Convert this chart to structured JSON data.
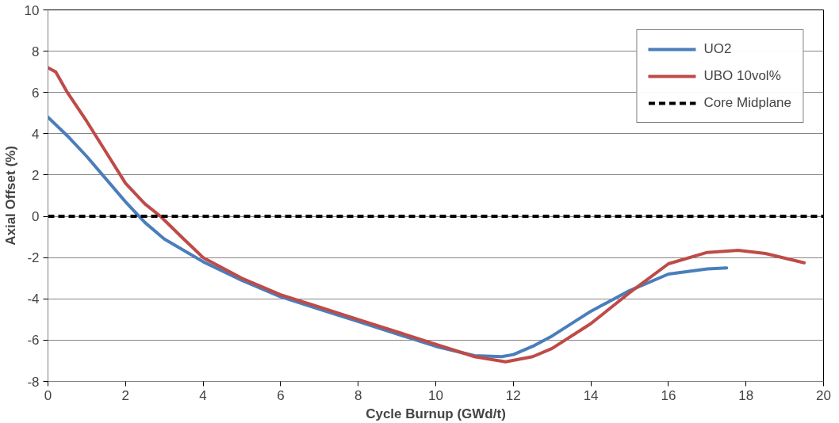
{
  "chart_data": {
    "type": "line",
    "xlabel": "Cycle Burnup (GWd/t)",
    "ylabel": "Axial Offset (%)",
    "xlim": [
      0,
      20
    ],
    "xticks": [
      0,
      2,
      4,
      6,
      8,
      10,
      12,
      14,
      16,
      18,
      20
    ],
    "ylim": [
      -8,
      10
    ],
    "yticks": [
      -8,
      -6,
      -4,
      -2,
      0,
      2,
      4,
      6,
      8,
      10
    ],
    "grid": "y",
    "legend": "top right",
    "line_style": "solid",
    "series": [
      {
        "name": "UO2",
        "color": "#4a7ebb",
        "x": [
          0,
          0.5,
          1,
          1.5,
          2,
          2.5,
          3,
          4,
          5,
          6,
          7,
          8,
          9,
          10,
          11,
          11.7,
          12,
          12.5,
          13,
          14,
          15,
          16,
          17,
          17.5
        ],
        "values": [
          4.8,
          3.9,
          2.9,
          1.8,
          0.7,
          -0.3,
          -1.1,
          -2.2,
          -3.1,
          -3.9,
          -4.5,
          -5.1,
          -5.7,
          -6.3,
          -6.75,
          -6.8,
          -6.7,
          -6.3,
          -5.8,
          -4.6,
          -3.6,
          -2.8,
          -2.55,
          -2.5
        ]
      },
      {
        "name": "UBO 10vol%",
        "color": "#be4b48",
        "x": [
          0,
          0.2,
          0.5,
          1,
          1.5,
          2,
          2.5,
          2.9,
          3.5,
          4,
          5,
          6,
          7,
          8,
          9,
          10,
          11,
          11.8,
          12.5,
          13,
          14,
          15,
          16,
          17,
          17.8,
          18.5,
          19.5
        ],
        "values": [
          7.2,
          7.0,
          6.0,
          4.6,
          3.1,
          1.6,
          0.6,
          0,
          -1.1,
          -2.0,
          -3.0,
          -3.8,
          -4.4,
          -5.0,
          -5.6,
          -6.2,
          -6.8,
          -7.05,
          -6.8,
          -6.4,
          -5.2,
          -3.7,
          -2.3,
          -1.75,
          -1.65,
          -1.8,
          -2.25
        ]
      }
    ],
    "ref_lines": [
      {
        "axis": "y",
        "value": 0,
        "label": "Core Midplane",
        "color": "#000000",
        "line_style": "dashed"
      }
    ]
  }
}
